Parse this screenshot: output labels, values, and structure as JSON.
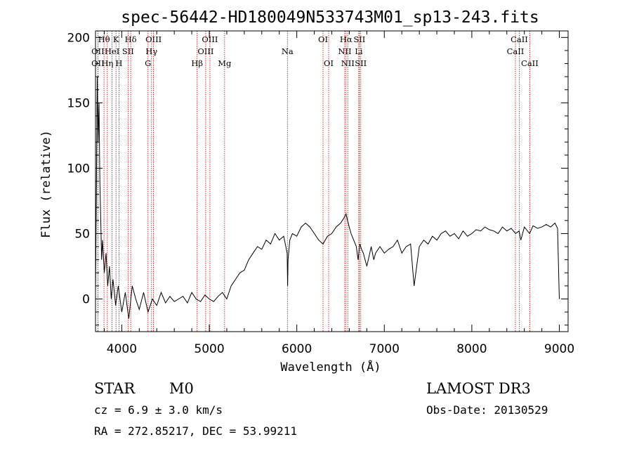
{
  "chart_data": {
    "type": "line",
    "title": "spec-56442-HD180049N533743M01_sp13-243.fits",
    "xlabel": "Wavelength (Å)",
    "ylabel": "Flux (relative)",
    "xlim": [
      3700,
      9100
    ],
    "ylim": [
      -25,
      205
    ],
    "xticks": [
      4000,
      5000,
      6000,
      7000,
      8000,
      9000
    ],
    "yticks": [
      0,
      50,
      100,
      150,
      200
    ],
    "grid": false,
    "series": [
      {
        "x": [
          3700,
          3710,
          3720,
          3730,
          3740,
          3750,
          3760,
          3770,
          3780,
          3800,
          3820,
          3840,
          3860,
          3880,
          3900,
          3930,
          3960,
          4000,
          4040,
          4080,
          4120,
          4160,
          4200,
          4250,
          4300,
          4350,
          4400,
          4450,
          4500,
          4550,
          4600,
          4650,
          4700,
          4750,
          4800,
          4850,
          4900,
          4950,
          5000,
          5050,
          5100,
          5150,
          5200,
          5250,
          5300,
          5350,
          5400,
          5450,
          5500,
          5550,
          5600,
          5650,
          5700,
          5750,
          5800,
          5850,
          5890,
          5895,
          5900,
          5920,
          5950,
          6000,
          6050,
          6100,
          6150,
          6200,
          6250,
          6300,
          6350,
          6400,
          6450,
          6500,
          6540,
          6563,
          6580,
          6600,
          6620,
          6650,
          6680,
          6700,
          6720,
          6740,
          6760,
          6780,
          6800,
          6850,
          6880,
          6900,
          6950,
          7000,
          7050,
          7100,
          7150,
          7200,
          7250,
          7300,
          7340,
          7400,
          7450,
          7500,
          7550,
          7600,
          7650,
          7700,
          7750,
          7800,
          7850,
          7900,
          7950,
          8000,
          8050,
          8100,
          8150,
          8200,
          8250,
          8300,
          8350,
          8400,
          8450,
          8500,
          8540,
          8560,
          8600,
          8660,
          8700,
          8750,
          8800,
          8850,
          8900,
          8950,
          8980,
          9000
        ],
        "y": [
          5,
          80,
          170,
          120,
          150,
          90,
          60,
          30,
          45,
          20,
          35,
          10,
          25,
          0,
          15,
          -5,
          10,
          -10,
          5,
          -15,
          10,
          0,
          -8,
          5,
          -10,
          0,
          -5,
          5,
          -3,
          2,
          -2,
          0,
          2,
          -3,
          5,
          0,
          -2,
          3,
          0,
          -2,
          2,
          5,
          0,
          10,
          15,
          20,
          22,
          30,
          35,
          40,
          38,
          45,
          42,
          50,
          45,
          48,
          35,
          10,
          30,
          45,
          50,
          48,
          55,
          58,
          55,
          50,
          45,
          42,
          48,
          50,
          55,
          58,
          62,
          65,
          60,
          55,
          50,
          45,
          40,
          30,
          42,
          38,
          35,
          30,
          25,
          40,
          30,
          35,
          40,
          35,
          38,
          40,
          45,
          35,
          40,
          42,
          10,
          40,
          45,
          42,
          48,
          45,
          50,
          52,
          48,
          50,
          46,
          52,
          48,
          50,
          53,
          52,
          55,
          53,
          52,
          50,
          55,
          52,
          54,
          50,
          52,
          45,
          55,
          50,
          56,
          54,
          55,
          57,
          55,
          58,
          54,
          0
        ]
      }
    ],
    "lines": [
      {
        "w": 3727,
        "label": "OII",
        "row": 2
      },
      {
        "w": 3727,
        "label": "OII",
        "row": 3
      },
      {
        "w": 3797,
        "label": "Hθ",
        "row": 1
      },
      {
        "w": 3835,
        "label": "Hη",
        "row": 3
      },
      {
        "w": 3889,
        "label": "HeI",
        "row": 2
      },
      {
        "w": 3934,
        "label": "K",
        "row": 1
      },
      {
        "w": 3968,
        "label": "H",
        "row": 3
      },
      {
        "w": 4072,
        "label": "SII",
        "row": 2
      },
      {
        "w": 4102,
        "label": "Hδ",
        "row": 1
      },
      {
        "w": 4300,
        "label": "G",
        "row": 3
      },
      {
        "w": 4340,
        "label": "Hγ",
        "row": 2
      },
      {
        "w": 4363,
        "label": "OIII",
        "row": 1
      },
      {
        "w": 4861,
        "label": "Hβ",
        "row": 3
      },
      {
        "w": 4959,
        "label": "OIII",
        "row": 2
      },
      {
        "w": 5007,
        "label": "OIII",
        "row": 1
      },
      {
        "w": 5175,
        "label": "Mg",
        "row": 3
      },
      {
        "w": 5893,
        "label": "Na",
        "row": 2
      },
      {
        "w": 6300,
        "label": "OI",
        "row": 1
      },
      {
        "w": 6364,
        "label": "OI",
        "row": 3
      },
      {
        "w": 6548,
        "label": "NII",
        "row": 2
      },
      {
        "w": 6563,
        "label": "Hα",
        "row": 1
      },
      {
        "w": 6583,
        "label": "NII",
        "row": 3
      },
      {
        "w": 6708,
        "label": "Li",
        "row": 2
      },
      {
        "w": 6716,
        "label": "SII",
        "row": 1
      },
      {
        "w": 6731,
        "label": "SII",
        "row": 3
      },
      {
        "w": 8498,
        "label": "CaII",
        "row": 2
      },
      {
        "w": 8542,
        "label": "CaII",
        "row": 1
      },
      {
        "w": 8662,
        "label": "CaII",
        "row": 3
      }
    ]
  },
  "info": {
    "class": "STAR",
    "subclass": "M0",
    "survey": "LAMOST DR3",
    "cz": "cz = 6.9 ± 3.0 km/s",
    "obsdate": "Obs-Date: 20130529",
    "radec": "RA = 272.85217, DEC =  53.99211"
  },
  "colors": {
    "spectrum": "#000000",
    "line_marker": "#cc0000",
    "axes": "#000000",
    "background": "#ffffff"
  }
}
